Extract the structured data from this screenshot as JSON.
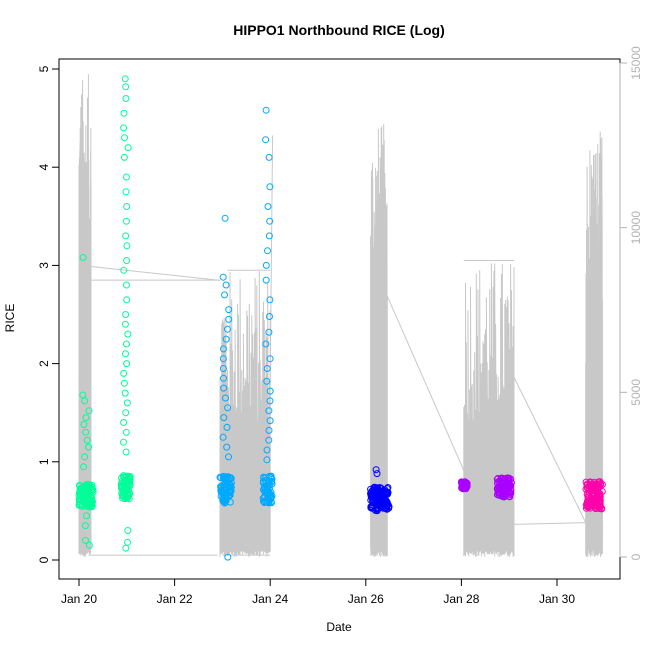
{
  "chart_data": {
    "type": "scatter",
    "title": "HIPPO1 Northbound RICE (Log)",
    "xlabel": "Date",
    "ylabel": "RICE",
    "x_ticks": [
      "Jan 20",
      "Jan 22",
      "Jan 24",
      "Jan 26",
      "Jan 28",
      "Jan 30"
    ],
    "xlim": [
      "Jan 19.75",
      "Jan 31.25"
    ],
    "ylim": [
      0,
      5
    ],
    "y_ticks": [
      "0",
      "1",
      "2",
      "3",
      "4",
      "5"
    ],
    "y2lim": [
      0,
      15000
    ],
    "y2_ticks": [
      "0",
      "5000",
      "10000",
      "15000"
    ],
    "grid": false,
    "legend": "none",
    "series": [
      {
        "color": "#00FF99",
        "segments": [
          {
            "start": 20.0,
            "end": 20.3,
            "base": 0.66,
            "spread": 0.12,
            "outliers": [
              3.08,
              1.68,
              1.62,
              1.52,
              1.45,
              1.38,
              1.3,
              1.22,
              1.15,
              0.2,
              0.15,
              0.35,
              0.45,
              1.05,
              0.95
            ]
          },
          {
            "start": 20.88,
            "end": 21.08,
            "base": 0.74,
            "spread": 0.12,
            "outliers": [
              4.9,
              4.82,
              4.7,
              4.55,
              4.4,
              4.3,
              4.2,
              4.1,
              3.9,
              3.75,
              3.6,
              3.45,
              3.3,
              3.2,
              3.05,
              2.95,
              2.8,
              2.65,
              2.5,
              2.4,
              2.3,
              2.2,
              2.1,
              2.0,
              1.9,
              1.8,
              1.7,
              1.6,
              1.5,
              1.4,
              1.3,
              1.2,
              1.1,
              0.3,
              0.18,
              0.12
            ]
          }
        ]
      },
      {
        "color": "#00AAFF",
        "segments": [
          {
            "start": 22.95,
            "end": 23.2,
            "base": 0.72,
            "spread": 0.14,
            "outliers": [
              3.48,
              2.88,
              2.8,
              2.7,
              2.55,
              2.45,
              2.35,
              2.25,
              2.15,
              2.05,
              1.95,
              1.85,
              1.75,
              1.65,
              1.55,
              1.45,
              1.35,
              1.25,
              1.15,
              1.05,
              0.03
            ]
          },
          {
            "start": 23.85,
            "end": 24.05,
            "base": 0.72,
            "spread": 0.14,
            "outliers": [
              4.58,
              4.28,
              4.1,
              3.8,
              3.6,
              3.45,
              3.3,
              3.15,
              3.0,
              2.85,
              2.65,
              2.48,
              2.32,
              2.2,
              2.05,
              1.95,
              1.82,
              1.72,
              1.62,
              1.52,
              1.42,
              1.32,
              1.22,
              1.12,
              1.02
            ]
          }
        ]
      },
      {
        "color": "#0000FF",
        "segments": [
          {
            "start": 26.1,
            "end": 26.5,
            "base": 0.62,
            "spread": 0.12,
            "outliers": [
              0.92,
              0.88
            ]
          }
        ]
      },
      {
        "color": "#AA00FF",
        "segments": [
          {
            "start": 28.0,
            "end": 28.12,
            "base": 0.76,
            "spread": 0.04,
            "outliers": []
          },
          {
            "start": 28.75,
            "end": 29.05,
            "base": 0.74,
            "spread": 0.1,
            "outliers": []
          }
        ]
      },
      {
        "color": "#FF00AA",
        "segments": [
          {
            "start": 30.6,
            "end": 30.95,
            "base": 0.66,
            "spread": 0.14,
            "outliers": []
          }
        ]
      }
    ],
    "secondary_line": {
      "color": "#c8c8c8",
      "flights": [
        {
          "start": 20.0,
          "end": 20.25,
          "ceiling": 14700,
          "tail_x": 22.95,
          "tail_y": 8400
        },
        {
          "start": 22.95,
          "end": 24.0,
          "ceiling": 8800,
          "tail_x": 24.05,
          "tail_y": 12800
        },
        {
          "start": 26.1,
          "end": 26.45,
          "ceiling": 13200,
          "tail_x": 28.8,
          "tail_y": 150
        },
        {
          "start": 28.05,
          "end": 29.1,
          "ceiling": 9100,
          "tail_x": 30.6,
          "tail_y": 1050
        },
        {
          "start": 30.6,
          "end": 30.95,
          "ceiling": 13000,
          "tail_x": 30.95,
          "tail_y": 500
        }
      ]
    }
  }
}
